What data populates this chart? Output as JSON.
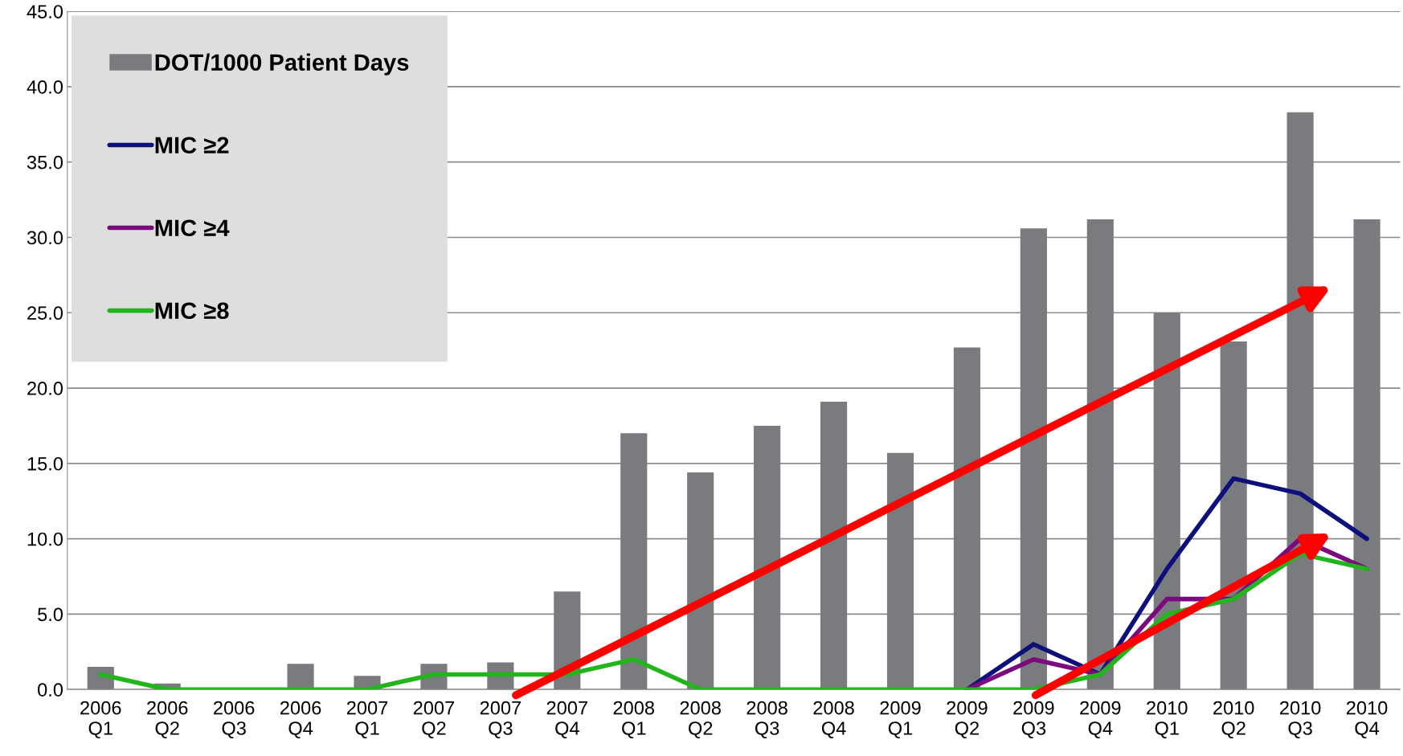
{
  "chart_data": {
    "type": "bar",
    "categories": [
      "2006\nQ1",
      "2006\nQ2",
      "2006\nQ3",
      "2006\nQ4",
      "2007\nQ1",
      "2007\nQ2",
      "2007\nQ3",
      "2007\nQ4",
      "2008\nQ1",
      "2008\nQ2",
      "2008\nQ3",
      "2008\nQ4",
      "2009\nQ1",
      "2009\nQ2",
      "2009\nQ3",
      "2009\nQ4",
      "2010\nQ1",
      "2010\nQ2",
      "2010\nQ3",
      "2010\nQ4"
    ],
    "series": [
      {
        "name": "DOT/1000 Patient Days",
        "color": "#7a7b7e",
        "values": [
          1.5,
          0.4,
          0,
          1.7,
          0.9,
          1.7,
          1.8,
          6.5,
          17.0,
          14.4,
          17.5,
          19.1,
          15.7,
          22.7,
          30.6,
          31.2,
          25.0,
          23.1,
          38.3,
          31.2
        ]
      },
      {
        "name": "MIC ≥2",
        "type": "line",
        "color": "#0d0f7a",
        "values": [
          null,
          null,
          null,
          null,
          null,
          null,
          null,
          null,
          null,
          null,
          null,
          null,
          null,
          0,
          3,
          1,
          8,
          14,
          13,
          10
        ]
      },
      {
        "name": "MIC ≥4",
        "type": "line",
        "color": "#7b0a7e",
        "values": [
          null,
          null,
          null,
          null,
          null,
          null,
          null,
          null,
          null,
          null,
          null,
          null,
          null,
          0,
          2,
          1,
          6,
          6,
          10,
          8
        ]
      },
      {
        "name": "MIC ≥8",
        "type": "line",
        "color": "#22b51c",
        "values": [
          1,
          0,
          0,
          0,
          0,
          1,
          1,
          1,
          2,
          0,
          0,
          0,
          0,
          0,
          0,
          1,
          5,
          6,
          9,
          8
        ]
      }
    ],
    "ylim": [
      0,
      45
    ],
    "yticks": [
      {
        "value": 0,
        "label": "0.0"
      },
      {
        "value": 5,
        "label": "5.0"
      },
      {
        "value": 10,
        "label": "10.0"
      },
      {
        "value": 15,
        "label": "15.0"
      },
      {
        "value": 20,
        "label": "20.0"
      },
      {
        "value": 25,
        "label": "25.0"
      },
      {
        "value": 30,
        "label": "30.0"
      },
      {
        "value": 35,
        "label": "35.0"
      },
      {
        "value": 40,
        "label": "40.0"
      },
      {
        "value": 45,
        "label": "45.0"
      }
    ],
    "grid": "y",
    "legend": "top left",
    "marker": "none",
    "line_style": "solid"
  }
}
